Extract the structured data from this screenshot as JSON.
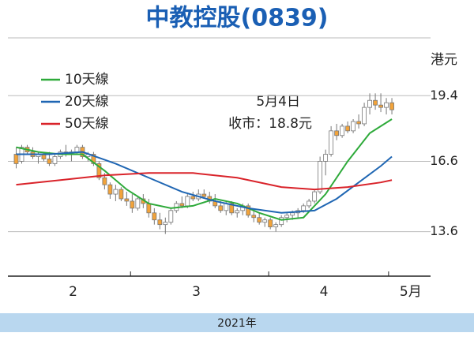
{
  "chart_data": {
    "type": "candlestick",
    "title": "中教控股(0839)",
    "unit_label": "港元",
    "xlim": [
      -1.5,
      75
    ],
    "ylim": [
      11.7,
      21.8
    ],
    "yticks": [
      13.6,
      16.6,
      19.4
    ],
    "grid": true,
    "xticks": [
      20.7,
      45.7,
      67.4
    ],
    "month_labels": [
      {
        "value": 10.3,
        "label": "2"
      },
      {
        "value": 32.6,
        "label": "3"
      },
      {
        "value": 55.7,
        "label": "4"
      },
      {
        "value": 71.4,
        "label": "5月"
      }
    ],
    "year_label": "2021年",
    "annotations": [
      "5月4日",
      "收市：18.8元"
    ],
    "up_color": "#ffffff",
    "down_color": "#f2a33a",
    "candle_edge": "#777777",
    "ohlc": [
      [
        16.9,
        17.2,
        16.3,
        16.5
      ],
      [
        16.6,
        17.3,
        16.5,
        17.2
      ],
      [
        17.2,
        17.3,
        16.9,
        17.0
      ],
      [
        17.0,
        17.2,
        16.7,
        16.8
      ],
      [
        16.8,
        17.0,
        16.5,
        16.9
      ],
      [
        16.9,
        17.0,
        16.6,
        16.7
      ],
      [
        16.7,
        17.0,
        16.4,
        16.5
      ],
      [
        16.5,
        16.9,
        16.4,
        16.8
      ],
      [
        16.8,
        17.1,
        16.7,
        17.0
      ],
      [
        17.0,
        17.3,
        16.8,
        16.9
      ],
      [
        16.9,
        17.1,
        16.6,
        17.0
      ],
      [
        17.0,
        17.3,
        16.9,
        17.2
      ],
      [
        17.2,
        17.3,
        16.7,
        16.8
      ],
      [
        16.8,
        17.0,
        16.6,
        16.9
      ],
      [
        16.9,
        17.0,
        16.4,
        16.5
      ],
      [
        16.5,
        16.6,
        15.8,
        15.9
      ],
      [
        15.9,
        16.1,
        15.4,
        15.6
      ],
      [
        15.6,
        15.7,
        15.0,
        15.2
      ],
      [
        15.2,
        15.6,
        14.9,
        15.4
      ],
      [
        15.4,
        15.5,
        14.9,
        15.0
      ],
      [
        15.0,
        15.3,
        14.7,
        14.9
      ],
      [
        14.9,
        15.2,
        14.4,
        14.6
      ],
      [
        14.6,
        15.1,
        14.5,
        15.0
      ],
      [
        15.0,
        15.2,
        14.6,
        14.8
      ],
      [
        14.8,
        15.0,
        14.2,
        14.4
      ],
      [
        14.4,
        14.6,
        13.9,
        14.1
      ],
      [
        14.1,
        14.4,
        13.7,
        13.9
      ],
      [
        13.9,
        14.2,
        13.5,
        14.0
      ],
      [
        14.0,
        14.6,
        13.9,
        14.5
      ],
      [
        14.5,
        14.9,
        14.4,
        14.8
      ],
      [
        14.8,
        15.1,
        14.6,
        14.7
      ],
      [
        14.7,
        15.2,
        14.6,
        15.1
      ],
      [
        15.1,
        15.3,
        14.9,
        15.0
      ],
      [
        15.0,
        15.4,
        14.9,
        15.2
      ],
      [
        15.2,
        15.4,
        15.0,
        15.1
      ],
      [
        15.1,
        15.3,
        14.8,
        14.9
      ],
      [
        14.9,
        15.2,
        14.6,
        14.7
      ],
      [
        14.7,
        14.9,
        14.4,
        14.5
      ],
      [
        14.5,
        14.9,
        14.3,
        14.8
      ],
      [
        14.8,
        14.9,
        14.3,
        14.4
      ],
      [
        14.4,
        14.6,
        14.2,
        14.5
      ],
      [
        14.5,
        14.8,
        14.3,
        14.7
      ],
      [
        14.7,
        14.8,
        14.2,
        14.3
      ],
      [
        14.3,
        14.5,
        14.0,
        14.2
      ],
      [
        14.2,
        14.4,
        13.9,
        14.0
      ],
      [
        14.0,
        14.2,
        13.8,
        14.1
      ],
      [
        14.1,
        14.2,
        13.7,
        13.8
      ],
      [
        13.8,
        14.0,
        13.6,
        13.9
      ],
      [
        13.9,
        14.3,
        13.8,
        14.2
      ],
      [
        14.2,
        14.4,
        14.0,
        14.3
      ],
      [
        14.3,
        14.5,
        14.1,
        14.4
      ],
      [
        14.4,
        14.6,
        14.2,
        14.5
      ],
      [
        14.5,
        14.8,
        14.4,
        14.7
      ],
      [
        14.7,
        15.0,
        14.6,
        14.9
      ],
      [
        14.9,
        15.4,
        14.8,
        15.3
      ],
      [
        15.3,
        16.8,
        15.2,
        16.6
      ],
      [
        16.6,
        17.1,
        16.0,
        16.9
      ],
      [
        16.9,
        18.1,
        16.8,
        17.9
      ],
      [
        17.9,
        18.2,
        17.5,
        17.7
      ],
      [
        17.7,
        18.2,
        17.6,
        18.1
      ],
      [
        18.1,
        18.3,
        17.8,
        17.9
      ],
      [
        17.9,
        18.4,
        17.8,
        18.3
      ],
      [
        18.3,
        18.6,
        18.0,
        18.2
      ],
      [
        18.2,
        19.1,
        18.1,
        18.9
      ],
      [
        18.9,
        19.5,
        18.6,
        19.2
      ],
      [
        19.2,
        19.5,
        18.8,
        19.0
      ],
      [
        19.0,
        19.5,
        18.7,
        18.9
      ],
      [
        18.9,
        19.3,
        18.6,
        19.1
      ],
      [
        19.1,
        19.3,
        18.6,
        18.8
      ]
    ],
    "series": [
      {
        "name": "10天線",
        "color": "#2eaa3a",
        "x": [
          0,
          4,
          8,
          12,
          16,
          20,
          24,
          28,
          32,
          36,
          40,
          44,
          48,
          52,
          56,
          60,
          64,
          68
        ],
        "values": [
          17.2,
          17.0,
          16.9,
          16.9,
          16.2,
          15.4,
          14.8,
          14.6,
          14.7,
          15.0,
          14.8,
          14.4,
          14.1,
          14.2,
          15.2,
          16.6,
          17.8,
          18.4
        ]
      },
      {
        "name": "20天線",
        "color": "#1f66b3",
        "x": [
          0,
          6,
          12,
          18,
          24,
          30,
          36,
          42,
          48,
          54,
          58,
          62,
          66,
          68
        ],
        "values": [
          16.9,
          16.9,
          17.0,
          16.5,
          15.9,
          15.3,
          14.9,
          14.6,
          14.4,
          14.5,
          15.0,
          15.7,
          16.4,
          16.8
        ]
      },
      {
        "name": "50天線",
        "color": "#d9232a",
        "x": [
          0,
          8,
          16,
          24,
          32,
          40,
          48,
          54,
          60,
          66,
          68
        ],
        "values": [
          15.6,
          15.8,
          16.0,
          16.1,
          16.1,
          15.9,
          15.5,
          15.4,
          15.5,
          15.7,
          15.8
        ]
      }
    ]
  }
}
